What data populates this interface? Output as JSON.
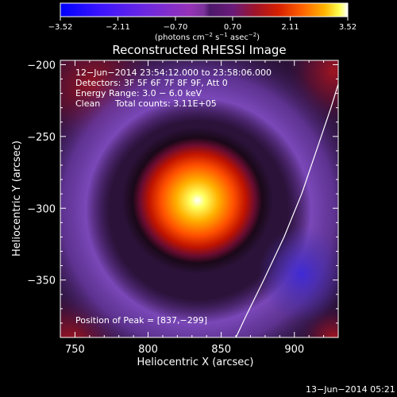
{
  "chart_data": {
    "type": "heatmap",
    "title": "Reconstructed RHESSI Image",
    "xlabel": "Heliocentric X (arcsec)",
    "ylabel": "Heliocentric Y (arcsec)",
    "xlim": [
      740,
      930
    ],
    "ylim": [
      -390,
      -197
    ],
    "xticks": [
      750,
      800,
      850,
      900
    ],
    "yticks": [
      -200,
      -250,
      -300,
      -350
    ],
    "xtick_labels": [
      "750",
      "800",
      "850",
      "900"
    ],
    "ytick_labels": [
      "−200",
      "−250",
      "−300",
      "−350"
    ],
    "colorbar": {
      "ticks": [
        -3.52,
        -2.11,
        -0.7,
        0.7,
        2.11,
        3.52
      ],
      "tick_labels": [
        "−3.52",
        "−2.11",
        "−0.70",
        "0.70",
        "2.11",
        "3.52"
      ],
      "unit_parts": [
        "(photons cm",
        "−2",
        " s",
        "−1",
        " asec",
        "−2",
        ")"
      ]
    },
    "annotations": [
      "12−Jun−2014 23:54:12.000 to 23:58:06.000",
      "Detectors: 3F 5F 6F 7F 8F 9F, Att 0",
      "Energy Range: 3.0 − 6.0 keV",
      "Clean",
      "Total counts: 3.11E+05"
    ],
    "peak_label": "Position of Peak = [837,−299]",
    "peak": [
      837,
      -299
    ],
    "peak_value": 3.52,
    "limb_points": [
      [
        935,
        -197
      ],
      [
        925,
        -230
      ],
      [
        915,
        -260
      ],
      [
        905,
        -290
      ],
      [
        893,
        -320
      ],
      [
        879,
        -350
      ],
      [
        867,
        -375
      ],
      [
        860,
        -390
      ]
    ],
    "colors": {
      "negative": [
        "#0000ff",
        "#3c14ff",
        "#6e28e0",
        "#9632b8",
        "#7a329a"
      ],
      "positive": [
        "#4c186a",
        "#6a1a7a",
        "#a01428",
        "#d82000",
        "#ff6000",
        "#ffb400",
        "#ffff50",
        "#ffffff"
      ],
      "frame_bg": "#1c0a26",
      "limb": "#ffffff"
    },
    "grid": false
  },
  "footer": {
    "date": "13−Jun−2014 05:21"
  }
}
